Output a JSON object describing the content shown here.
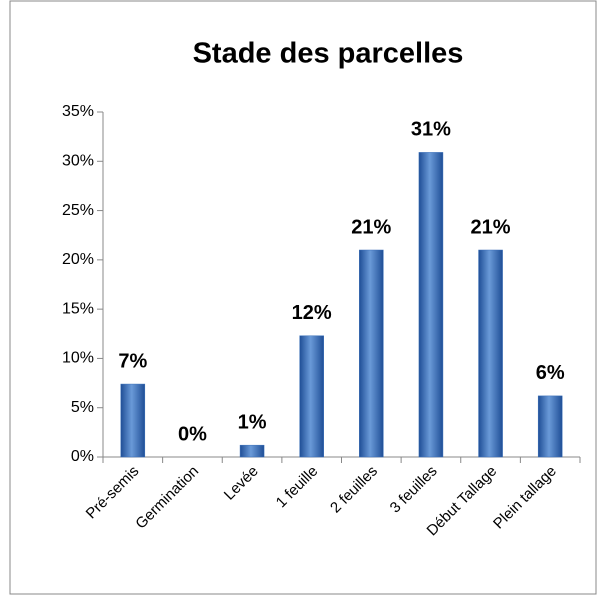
{
  "chart_data": {
    "type": "bar",
    "title": "Stade des parcelles",
    "categories": [
      "Pré-semis",
      "Germination",
      "Levée",
      "1 feuille",
      "2 feuilles",
      "3 feuilles",
      "Début Tallage",
      "Plein tallage"
    ],
    "values": [
      7.4,
      0,
      1.2,
      12.3,
      21,
      30.9,
      21,
      6.2
    ],
    "value_labels": [
      "7%",
      "0%",
      "1%",
      "12%",
      "21%",
      "31%",
      "21%",
      "6%"
    ],
    "color": "#3a6fb8",
    "ylim": [
      0,
      35
    ],
    "yticks": [
      {
        "value": 0,
        "label": "0%"
      },
      {
        "value": 5,
        "label": "5%"
      },
      {
        "value": 10,
        "label": "10%"
      },
      {
        "value": 15,
        "label": "15%"
      },
      {
        "value": 20,
        "label": "20%"
      },
      {
        "value": 25,
        "label": "25%"
      },
      {
        "value": 30,
        "label": "30%"
      },
      {
        "value": 35,
        "label": "35%"
      }
    ],
    "grid": false
  }
}
